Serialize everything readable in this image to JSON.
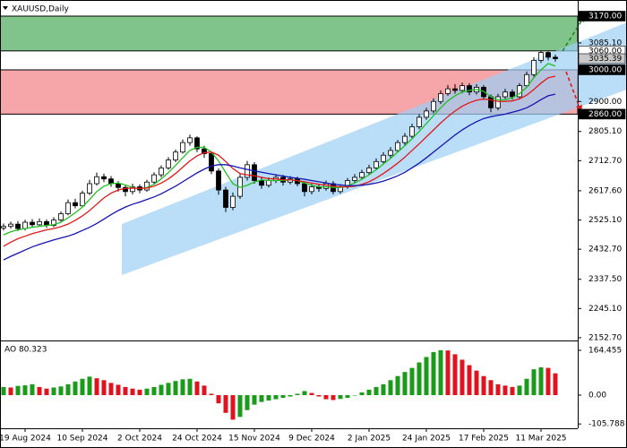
{
  "chart_data": [
    {
      "type": "candlestick",
      "title": "XAUUSD,Daily",
      "categories": [
        null,
        null,
        null,
        "19 Aug 2024",
        null,
        null,
        null,
        null,
        null,
        null,
        null,
        "10 Sep 2024",
        null,
        null,
        null,
        null,
        null,
        null,
        null,
        "2 Oct 2024",
        null,
        null,
        null,
        null,
        null,
        null,
        null,
        "24 Oct 2024",
        null,
        null,
        null,
        null,
        null,
        null,
        null,
        "15 Nov 2024",
        null,
        null,
        null,
        null,
        null,
        null,
        null,
        "9 Dec 2024",
        null,
        null,
        null,
        null,
        null,
        null,
        null,
        "2 Jan 2025",
        null,
        null,
        null,
        null,
        null,
        null,
        null,
        "24 Jan 2025",
        null,
        null,
        null,
        null,
        null,
        null,
        null,
        "17 Feb 2025",
        null,
        null,
        null,
        null,
        null,
        null,
        null,
        "11 Mar 2025",
        null,
        null
      ],
      "open": [
        2500,
        2505,
        2512,
        2498,
        2518,
        2510,
        2520,
        2508,
        2525,
        2545,
        2580,
        2570,
        2610,
        2640,
        2662,
        2655,
        2640,
        2628,
        2615,
        2630,
        2620,
        2645,
        2668,
        2690,
        2715,
        2740,
        2770,
        2785,
        2750,
        2735,
        2680,
        2620,
        2565,
        2600,
        2660,
        2700,
        2650,
        2635,
        2650,
        2660,
        2645,
        2655,
        2640,
        2615,
        2630,
        2625,
        2640,
        2615,
        2630,
        2650,
        2660,
        2675,
        2690,
        2710,
        2730,
        2745,
        2770,
        2790,
        2820,
        2850,
        2870,
        2900,
        2925,
        2940,
        2935,
        2950,
        2930,
        2945,
        2915,
        2880,
        2915,
        2930,
        2915,
        2950,
        2985,
        3030,
        3055,
        3040
      ],
      "high": [
        2514,
        2520,
        2522,
        2526,
        2528,
        2530,
        2527,
        2534,
        2552,
        2590,
        2592,
        2618,
        2652,
        2675,
        2672,
        2664,
        2648,
        2635,
        2640,
        2638,
        2652,
        2676,
        2698,
        2724,
        2748,
        2780,
        2795,
        2790,
        2760,
        2742,
        2688,
        2630,
        2612,
        2670,
        2712,
        2708,
        2662,
        2660,
        2670,
        2668,
        2664,
        2662,
        2648,
        2640,
        2638,
        2650,
        2648,
        2638,
        2658,
        2670,
        2684,
        2700,
        2720,
        2740,
        2756,
        2778,
        2800,
        2830,
        2860,
        2880,
        2910,
        2935,
        2952,
        2955,
        2960,
        2958,
        2955,
        2952,
        2922,
        2924,
        2940,
        2938,
        2958,
        2995,
        3040,
        3060,
        3058,
        3048
      ],
      "low": [
        2492,
        2498,
        2490,
        2492,
        2502,
        2504,
        2500,
        2502,
        2518,
        2540,
        2562,
        2565,
        2604,
        2634,
        2645,
        2630,
        2615,
        2600,
        2606,
        2610,
        2614,
        2640,
        2660,
        2684,
        2708,
        2735,
        2760,
        2740,
        2722,
        2670,
        2605,
        2550,
        2556,
        2592,
        2650,
        2640,
        2624,
        2628,
        2642,
        2634,
        2638,
        2632,
        2600,
        2606,
        2614,
        2618,
        2606,
        2608,
        2624,
        2642,
        2652,
        2668,
        2684,
        2702,
        2722,
        2738,
        2762,
        2784,
        2812,
        2842,
        2862,
        2892,
        2918,
        2925,
        2926,
        2920,
        2922,
        2905,
        2866,
        2872,
        2908,
        2906,
        2910,
        2944,
        2978,
        3022,
        3030,
        3026
      ],
      "close": [
        2505,
        2512,
        2498,
        2518,
        2510,
        2520,
        2508,
        2525,
        2545,
        2580,
        2570,
        2610,
        2640,
        2662,
        2655,
        2640,
        2628,
        2615,
        2630,
        2620,
        2645,
        2668,
        2690,
        2715,
        2740,
        2770,
        2785,
        2750,
        2735,
        2680,
        2620,
        2565,
        2600,
        2660,
        2700,
        2650,
        2635,
        2650,
        2660,
        2645,
        2655,
        2640,
        2615,
        2630,
        2625,
        2640,
        2615,
        2630,
        2650,
        2660,
        2675,
        2690,
        2710,
        2730,
        2745,
        2770,
        2790,
        2820,
        2850,
        2870,
        2900,
        2925,
        2940,
        2935,
        2950,
        2930,
        2945,
        2915,
        2880,
        2915,
        2930,
        2915,
        2950,
        2985,
        3030,
        3055,
        3040,
        3035.39
      ],
      "up_color": "#ffffff",
      "down_color": "#000000",
      "series": [
        {
          "color": "#22c022",
          "values": [
            2478,
            2488,
            2494,
            2498,
            2502,
            2505,
            2508,
            2510,
            2518,
            2532,
            2548,
            2566,
            2590,
            2615,
            2632,
            2640,
            2642,
            2636,
            2628,
            2624,
            2628,
            2638,
            2655,
            2675,
            2698,
            2722,
            2745,
            2755,
            2755,
            2740,
            2712,
            2675,
            2640,
            2628,
            2635,
            2645,
            2652,
            2650,
            2650,
            2650,
            2652,
            2650,
            2642,
            2635,
            2630,
            2630,
            2628,
            2628,
            2634,
            2642,
            2654,
            2668,
            2684,
            2702,
            2720,
            2740,
            2760,
            2782,
            2805,
            2830,
            2855,
            2880,
            2902,
            2918,
            2930,
            2935,
            2938,
            2932,
            2915,
            2905,
            2905,
            2912,
            2925,
            2945,
            2975,
            3000,
            3020,
            3012
          ]
        },
        {
          "color": "#e01818",
          "values": [
            2442,
            2455,
            2466,
            2474,
            2482,
            2488,
            2494,
            2498,
            2504,
            2512,
            2524,
            2538,
            2555,
            2575,
            2595,
            2610,
            2620,
            2625,
            2626,
            2625,
            2626,
            2632,
            2642,
            2655,
            2672,
            2692,
            2712,
            2728,
            2738,
            2740,
            2730,
            2710,
            2688,
            2672,
            2668,
            2665,
            2660,
            2656,
            2655,
            2652,
            2652,
            2650,
            2646,
            2642,
            2638,
            2635,
            2632,
            2630,
            2630,
            2632,
            2638,
            2646,
            2658,
            2672,
            2688,
            2705,
            2724,
            2745,
            2766,
            2788,
            2810,
            2832,
            2852,
            2870,
            2885,
            2896,
            2904,
            2908,
            2905,
            2900,
            2900,
            2902,
            2908,
            2920,
            2938,
            2958,
            2975,
            2980
          ]
        },
        {
          "color": "#1414b4",
          "values": [
            2399,
            2410,
            2420,
            2430,
            2440,
            2448,
            2455,
            2462,
            2468,
            2474,
            2482,
            2492,
            2502,
            2514,
            2528,
            2542,
            2555,
            2566,
            2575,
            2582,
            2590,
            2598,
            2608,
            2620,
            2632,
            2646,
            2660,
            2674,
            2686,
            2696,
            2700,
            2700,
            2696,
            2690,
            2685,
            2680,
            2676,
            2672,
            2668,
            2664,
            2660,
            2657,
            2654,
            2650,
            2646,
            2642,
            2638,
            2636,
            2634,
            2634,
            2635,
            2638,
            2642,
            2648,
            2656,
            2665,
            2676,
            2690,
            2705,
            2722,
            2740,
            2758,
            2776,
            2794,
            2810,
            2824,
            2836,
            2846,
            2852,
            2856,
            2860,
            2866,
            2872,
            2880,
            2892,
            2906,
            2918,
            2923
          ]
        }
      ],
      "ylim": [
        2144,
        3221
      ],
      "yticks": [
        {
          "value": 3085.1,
          "label": "3085.10"
        },
        {
          "value": 2900,
          "label": "2900.00"
        },
        {
          "value": 2805.1,
          "label": "2805.10"
        },
        {
          "value": 2712.7,
          "label": "2712.70"
        },
        {
          "value": 2617.6,
          "label": "2617.60"
        },
        {
          "value": 2525.1,
          "label": "2525.10"
        },
        {
          "value": 2432.7,
          "label": "2432.70"
        },
        {
          "value": 2337.5,
          "label": "2337.50"
        },
        {
          "value": 2245.1,
          "label": "2245.10"
        },
        {
          "value": 2152.7,
          "label": "2152.70"
        }
      ],
      "levels": [
        {
          "value": 3170,
          "label": "3170.00"
        },
        {
          "value": 3060,
          "label": "3060.00"
        },
        {
          "value": 3000,
          "label": "3000.00"
        },
        {
          "value": 2860,
          "label": "2860.00"
        }
      ],
      "last_price": {
        "value": 3035.39,
        "label": "3035.39"
      },
      "zones": [
        {
          "from": 3060,
          "to": 3170,
          "color": "#80c48c"
        },
        {
          "from": 2860,
          "to": 3000,
          "color": "#f6a5a8"
        }
      ],
      "channel": {
        "x": [
          16.5,
          87
        ],
        "upper": [
          2512,
          3150
        ],
        "lower": [
          2351,
          2938
        ],
        "color": "#9dcff5"
      }
    },
    {
      "type": "bar",
      "title": "AO 80.323",
      "values": [
        30,
        28,
        34,
        36,
        40,
        30,
        24,
        28,
        32,
        40,
        50,
        60,
        68,
        62,
        55,
        45,
        38,
        30,
        24,
        20,
        24,
        30,
        38,
        45,
        52,
        58,
        60,
        50,
        35,
        5,
        -30,
        -65,
        -90,
        -80,
        -55,
        -35,
        -25,
        -20,
        -15,
        -10,
        -5,
        5,
        15,
        8,
        -5,
        -15,
        -18,
        -14,
        -10,
        0,
        10,
        20,
        30,
        40,
        55,
        70,
        85,
        100,
        120,
        140,
        158,
        165,
        164,
        150,
        130,
        110,
        90,
        70,
        55,
        40,
        35,
        30,
        35,
        60,
        95,
        102,
        100,
        80
      ],
      "up_color": "#1a9c1a",
      "down_color": "#e0141e",
      "ylim": [
        -121.7,
        190.8
      ],
      "yticks": [
        164.455,
        {
          "value": 0,
          "label": "0.00"
        },
        -105.788
      ]
    }
  ]
}
